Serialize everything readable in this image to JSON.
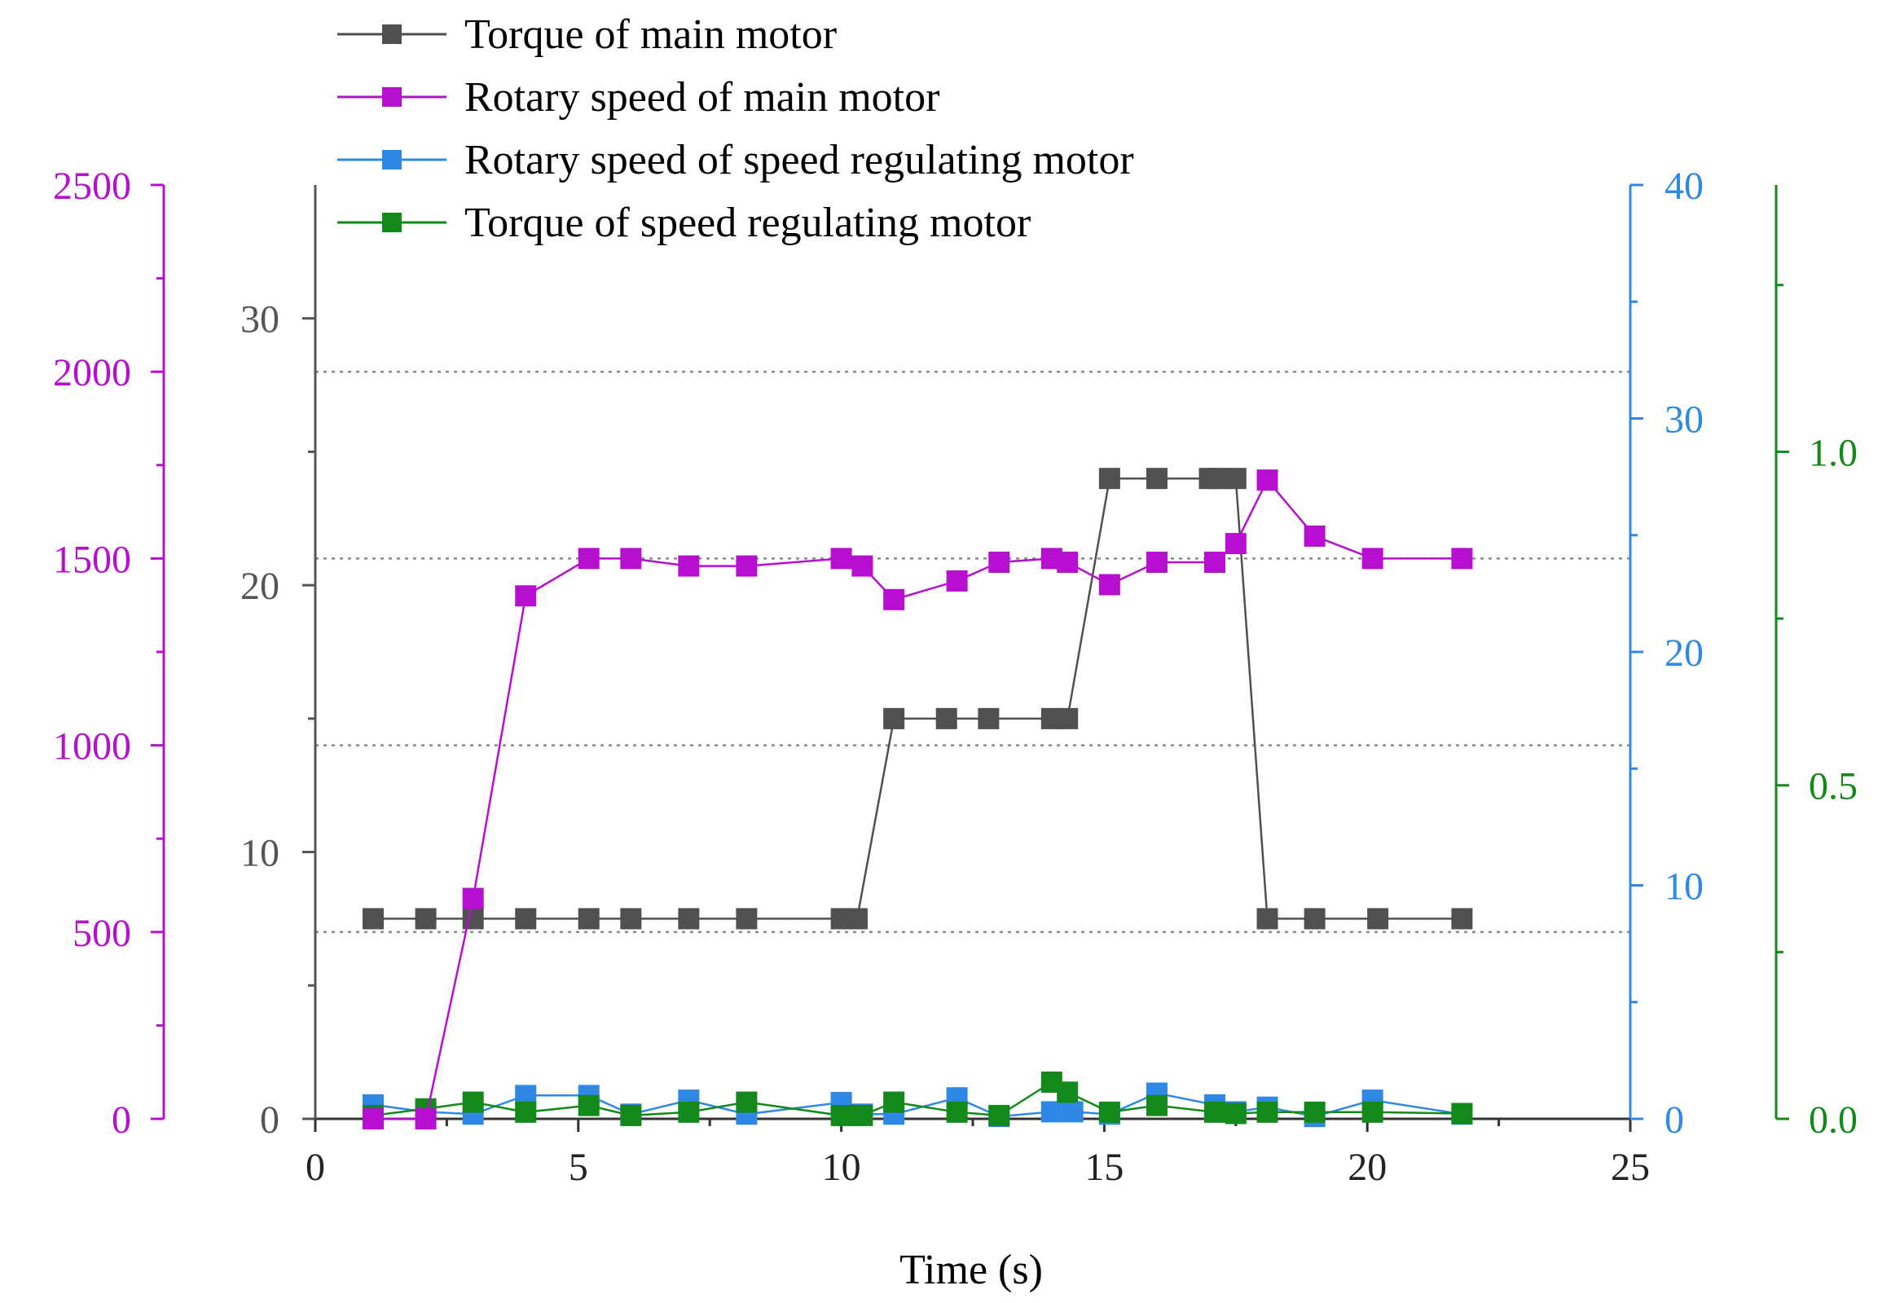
{
  "chart_data": {
    "type": "line",
    "xlabel": "Time (s)",
    "x_axis": {
      "range": [
        0,
        25
      ],
      "ticks": [
        0,
        5,
        10,
        15,
        20,
        25
      ]
    },
    "axes": {
      "speed_main": {
        "range": [
          0,
          2500
        ],
        "ticks": [
          0,
          500,
          1000,
          1500,
          2000,
          2500
        ],
        "color": "#b70fcf"
      },
      "torque_main": {
        "range": [
          0,
          35
        ],
        "ticks": [
          0,
          10,
          20,
          30
        ],
        "color": "#555555"
      },
      "speed_reg": {
        "range": [
          0,
          40
        ],
        "ticks": [
          0,
          10,
          20,
          30,
          40
        ],
        "color": "#2f88e4"
      },
      "torque_reg": {
        "range": [
          0,
          1.4
        ],
        "ticks": [
          0.0,
          0.5,
          1.0
        ],
        "tick_labels": [
          "0.0",
          "0.5",
          "1.0"
        ],
        "color": "#13891b"
      }
    },
    "gridlines_speed_main": [
      500,
      1000,
      1500,
      2000
    ],
    "series": [
      {
        "name": "Torque of main motor",
        "axis": "torque_main",
        "color": "#505050",
        "x": [
          1.1,
          2.1,
          3.0,
          4.0,
          5.2,
          6.0,
          7.1,
          8.2,
          10.0,
          10.3,
          11.0,
          12.0,
          12.8,
          14.0,
          14.3,
          15.1,
          16.0,
          17.0,
          17.2,
          17.5,
          18.1,
          19.0,
          20.2,
          21.8
        ],
        "values": [
          7.5,
          7.5,
          7.5,
          7.5,
          7.5,
          7.5,
          7.5,
          7.5,
          7.5,
          7.5,
          15.0,
          15.0,
          15.0,
          15.0,
          15.0,
          24.0,
          24.0,
          24.0,
          24.0,
          24.0,
          7.5,
          7.5,
          7.5,
          7.5
        ]
      },
      {
        "name": "Rotary speed of main motor",
        "axis": "speed_main",
        "color": "#b70fcf",
        "x": [
          1.1,
          2.1,
          3.0,
          4.0,
          5.2,
          6.0,
          7.1,
          8.2,
          10.0,
          10.4,
          11.0,
          12.2,
          13.0,
          14.0,
          14.3,
          15.1,
          16.0,
          17.1,
          17.5,
          18.1,
          19.0,
          20.1,
          21.8
        ],
        "values": [
          0,
          0,
          590,
          1400,
          1500,
          1500,
          1480,
          1480,
          1500,
          1480,
          1390,
          1440,
          1490,
          1500,
          1490,
          1430,
          1490,
          1490,
          1540,
          1710,
          1560,
          1500,
          1500
        ]
      },
      {
        "name": "Rotary speed of speed regulating motor",
        "axis": "speed_reg",
        "color": "#2f88e4",
        "x": [
          1.1,
          2.1,
          3.0,
          4.0,
          5.2,
          6.0,
          7.1,
          8.2,
          10.0,
          10.4,
          11.0,
          12.2,
          13.0,
          14.0,
          14.4,
          15.1,
          16.0,
          17.1,
          17.5,
          18.1,
          19.0,
          20.1,
          21.8
        ],
        "values": [
          0.6,
          0.3,
          0.2,
          1.0,
          1.0,
          0.2,
          0.8,
          0.2,
          0.7,
          0.2,
          0.2,
          0.9,
          0.1,
          0.3,
          0.3,
          0.2,
          1.1,
          0.6,
          0.3,
          0.5,
          0.1,
          0.8,
          0.2
        ]
      },
      {
        "name": "Torque of speed regulating motor",
        "axis": "torque_reg",
        "color": "#13891b",
        "x": [
          1.1,
          2.1,
          3.0,
          4.0,
          5.2,
          6.0,
          7.1,
          8.2,
          10.0,
          10.4,
          11.0,
          12.2,
          13.0,
          14.0,
          14.3,
          15.1,
          16.0,
          17.1,
          17.5,
          18.1,
          19.0,
          20.1,
          21.8
        ],
        "values": [
          0.005,
          0.015,
          0.025,
          0.01,
          0.02,
          0.005,
          0.01,
          0.025,
          0.005,
          0.005,
          0.025,
          0.01,
          0.005,
          0.055,
          0.04,
          0.01,
          0.02,
          0.01,
          0.008,
          0.01,
          0.01,
          0.01,
          0.008
        ]
      }
    ]
  }
}
